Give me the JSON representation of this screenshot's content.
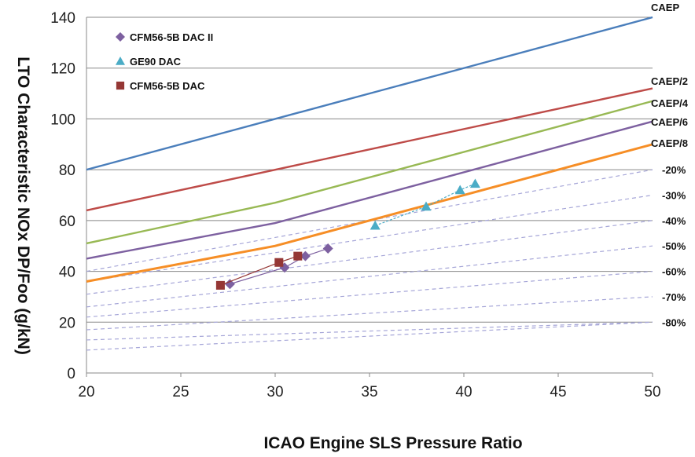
{
  "chart_data": {
    "type": "line",
    "xlabel": "ICAO Engine SLS Pressure Ratio",
    "ylabel": "LTO Characteristic  NOx  DP/Foo (g/kN)",
    "xlim": [
      20,
      50
    ],
    "ylim": [
      0,
      140
    ],
    "x_ticks": [
      "20",
      "25",
      "30",
      "35",
      "40",
      "45",
      "50"
    ],
    "y_ticks": [
      "0",
      "20",
      "40",
      "60",
      "80",
      "100",
      "120",
      "140"
    ],
    "grid": "horizontal",
    "legend_position": "top-left",
    "standard_lines": [
      {
        "name": "CAEP",
        "x": [
          20,
          30,
          50
        ],
        "y": [
          80,
          100,
          140
        ],
        "color": "#4a7ebb"
      },
      {
        "name": "CAEP/2",
        "x": [
          20,
          30,
          50
        ],
        "y": [
          64,
          80,
          112
        ],
        "color": "#be4b48"
      },
      {
        "name": "CAEP/4",
        "x": [
          20,
          30,
          50
        ],
        "y": [
          51,
          67,
          107
        ],
        "color": "#98b954"
      },
      {
        "name": "CAEP/6",
        "x": [
          20,
          30,
          50
        ],
        "y": [
          45,
          59,
          99
        ],
        "color": "#7d60a0"
      },
      {
        "name": "CAEP/8",
        "x": [
          20,
          30,
          50
        ],
        "y": [
          36,
          50,
          90
        ],
        "color": "#f68e26"
      }
    ],
    "reduction_lines": [
      {
        "name": "-20%",
        "x": [
          20,
          50
        ],
        "y": [
          40,
          80
        ],
        "color": "#a6a6d8"
      },
      {
        "name": "-30%",
        "x": [
          20,
          50
        ],
        "y": [
          36,
          70
        ],
        "color": "#a6a6d8"
      },
      {
        "name": "-40%",
        "x": [
          20,
          50
        ],
        "y": [
          31,
          60
        ],
        "color": "#a6a6d8"
      },
      {
        "name": "-50%",
        "x": [
          20,
          50
        ],
        "y": [
          26,
          50
        ],
        "color": "#a6a6d8"
      },
      {
        "name": "-60%",
        "x": [
          20,
          50
        ],
        "y": [
          22,
          40
        ],
        "color": "#a6a6d8"
      },
      {
        "name": "-70%",
        "x": [
          20,
          50
        ],
        "y": [
          17,
          30
        ],
        "color": "#a6a6d8"
      },
      {
        "name": "-80%",
        "x": [
          20,
          50
        ],
        "y": [
          13,
          20
        ],
        "color": "#a6a6d8"
      },
      {
        "name": "",
        "x": [
          20,
          50
        ],
        "y": [
          9,
          20
        ],
        "color": "#a6a6d8"
      }
    ],
    "series": [
      {
        "name": "CFM56-5B DAC II",
        "marker": "diamond",
        "color": "#7d60a0",
        "x": [
          27.6,
          30.5,
          31.6,
          32.8
        ],
        "y": [
          35,
          41.5,
          46,
          49
        ]
      },
      {
        "name": "GE90 DAC",
        "marker": "triangle",
        "color": "#4bacc6",
        "x": [
          35.3,
          38,
          39.8,
          40.6
        ],
        "y": [
          58,
          65.5,
          72,
          74.5
        ]
      },
      {
        "name": "CFM56-5B DAC",
        "marker": "square",
        "color": "#953735",
        "x": [
          27.1,
          30.2,
          31.2
        ],
        "y": [
          34.5,
          43.5,
          46
        ]
      }
    ]
  }
}
